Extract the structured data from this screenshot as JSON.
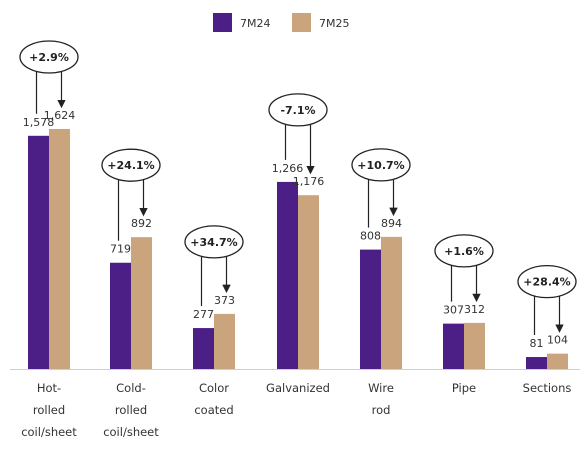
{
  "chart_data": {
    "type": "bar",
    "categories": [
      [
        "Hot-",
        "rolled",
        "coil/sheet"
      ],
      [
        "Cold-",
        "rolled",
        "coil/sheet"
      ],
      [
        "Color",
        "coated"
      ],
      [
        "Galvanized"
      ],
      [
        "Wire",
        "rod"
      ],
      [
        "Pipe"
      ],
      [
        "Sections"
      ]
    ],
    "series": [
      {
        "name": "7M24",
        "color": "#4b1f86",
        "values": [
          1578,
          719,
          277,
          1266,
          808,
          307,
          81
        ]
      },
      {
        "name": "7M25",
        "color": "#c9a47d",
        "values": [
          1624,
          892,
          373,
          1176,
          894,
          312,
          104
        ]
      }
    ],
    "value_labels": [
      [
        "1,578",
        "1,624"
      ],
      [
        "719",
        "892"
      ],
      [
        "277",
        "373"
      ],
      [
        "1,266",
        "1,176"
      ],
      [
        "808",
        "894"
      ],
      [
        "307",
        "312"
      ],
      [
        "81",
        "104"
      ]
    ],
    "annotations": [
      "+2.9%",
      "+24.1%",
      "+34.7%",
      "-7.1%",
      "+10.7%",
      "+1.6%",
      "+28.4%"
    ],
    "ylim": [
      0,
      1900
    ],
    "legend_position": "top-center",
    "grid": false
  }
}
